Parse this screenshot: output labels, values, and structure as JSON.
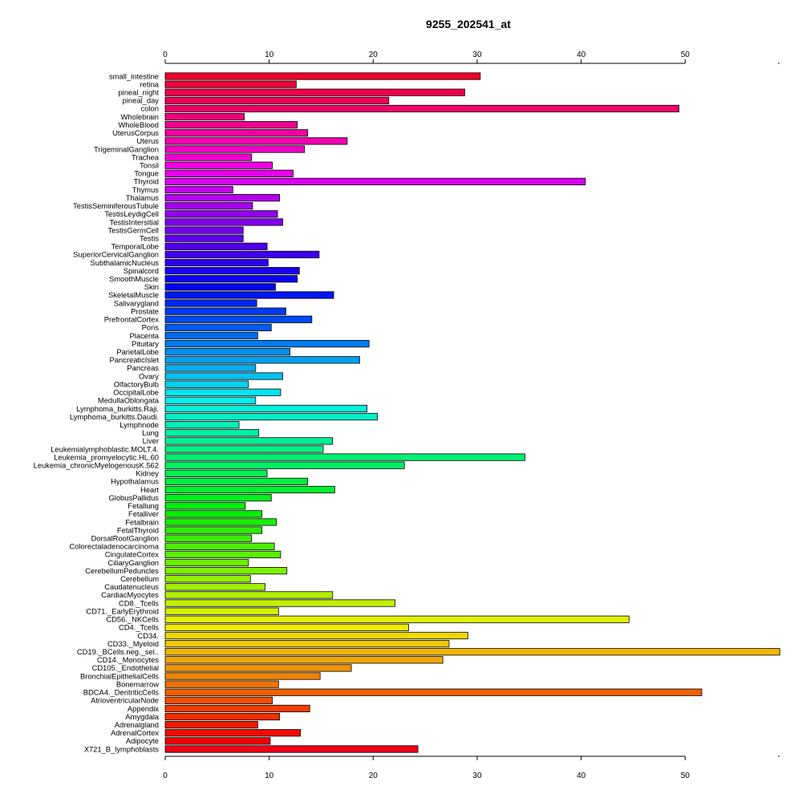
{
  "chart_data": {
    "type": "bar",
    "orientation": "horizontal",
    "title": "9255_202541_at",
    "xlabel": "",
    "ylabel": "",
    "xlim": [
      0,
      59
    ],
    "x_ticks": [
      0,
      10,
      20,
      30,
      40,
      50
    ],
    "grid": false,
    "legend": "none",
    "axes": [
      "top",
      "bottom"
    ],
    "color_scheme": "rainbow (red -> magenta -> blue -> cyan -> green -> yellow -> orange -> red)",
    "categories": [
      "small_intestine",
      "retina",
      "pineal_night",
      "pineal_day",
      "colon",
      "Wholebrain",
      "WholeBlood",
      "UterusCorpus",
      "Uterus",
      "TrigeminalGanglion",
      "Trachea",
      "Tonsil",
      "Tongue",
      "Thyroid",
      "Thymus",
      "Thalamus",
      "TestisSeminiferousTubule",
      "TestisLeydigCell",
      "TestisIntersitial",
      "TestisGermCell",
      "Testis",
      "TemporalLobe",
      "SuperiorCervicalGanglion",
      "SubthalamicNucleus",
      "Spinalcord",
      "SmoothMuscle",
      "Skin",
      "SkeletalMuscle",
      "Salivarygland",
      "Prostate",
      "PrefrontalCortex",
      "Pons",
      "Placenta",
      "Pituitary",
      "ParietalLobe",
      "PancreaticIslet",
      "Pancreas",
      "Ovary",
      "OlfactoryBulb",
      "OccipitalLobe",
      "MedullaOblongata",
      "Lymphoma_burkitts.Raji.",
      "Lymphoma_burkitts.Daudi.",
      "Lymphnode",
      "Lung",
      "Liver",
      "Leukemialymphoblastic.MOLT.4.",
      "Leukemia_promyelocytic.HL.60",
      "Leukemia_chronicMyelogenousK.562",
      "Kidney",
      "Hypothalamus",
      "Heart",
      "GlobusPallidus",
      "Fetallung",
      "Fetalliver",
      "Fetalbrain",
      "FetalThyroid",
      "DorsalRootGanglion",
      "Colorectaladenocarcinoma",
      "CingulateCortex",
      "CiliaryGanglion",
      "CerebellumPeduncles",
      "Cerebellum",
      "Caudatenucleus",
      "CardiacMyocytes",
      "CD8._Tcells",
      "CD71._EarlyErythroid",
      "CD56._NKCells",
      "CD4._Tcells",
      "CD34.",
      "CD33._Myeloid",
      "CD19._BCells.neg._sel..",
      "CD14._Monocytes",
      "CD105._Endothelial",
      "BronchialEpithelialCells",
      "Bonemarrow",
      "BDCA4._DentriticCells",
      "AtrioventricularNode",
      "Appendix",
      "Amygdala",
      "Adrenalgland",
      "AdrenalCortex",
      "Adipocyte",
      "X721_B_lymphoblasts"
    ],
    "values": [
      30.3,
      12.6,
      28.8,
      21.5,
      49.4,
      7.6,
      12.7,
      13.7,
      17.5,
      13.4,
      8.3,
      10.3,
      12.3,
      40.4,
      6.5,
      11.0,
      8.4,
      10.8,
      11.3,
      7.5,
      7.5,
      9.8,
      14.8,
      9.9,
      12.9,
      12.7,
      10.6,
      16.2,
      8.8,
      11.6,
      14.1,
      10.2,
      8.9,
      19.6,
      12.0,
      18.7,
      8.7,
      11.3,
      8.0,
      11.1,
      8.7,
      19.4,
      20.4,
      7.1,
      9.0,
      16.1,
      15.2,
      34.6,
      23.0,
      9.8,
      13.7,
      16.3,
      10.2,
      7.7,
      9.3,
      10.7,
      9.3,
      8.3,
      10.5,
      11.1,
      8.0,
      11.7,
      8.2,
      9.6,
      16.1,
      22.1,
      10.9,
      44.6,
      23.4,
      29.1,
      27.3,
      59.1,
      26.7,
      17.9,
      14.9,
      10.9,
      51.6,
      10.3,
      13.9,
      11.0,
      8.9,
      13.0,
      10.1,
      24.3
    ]
  }
}
